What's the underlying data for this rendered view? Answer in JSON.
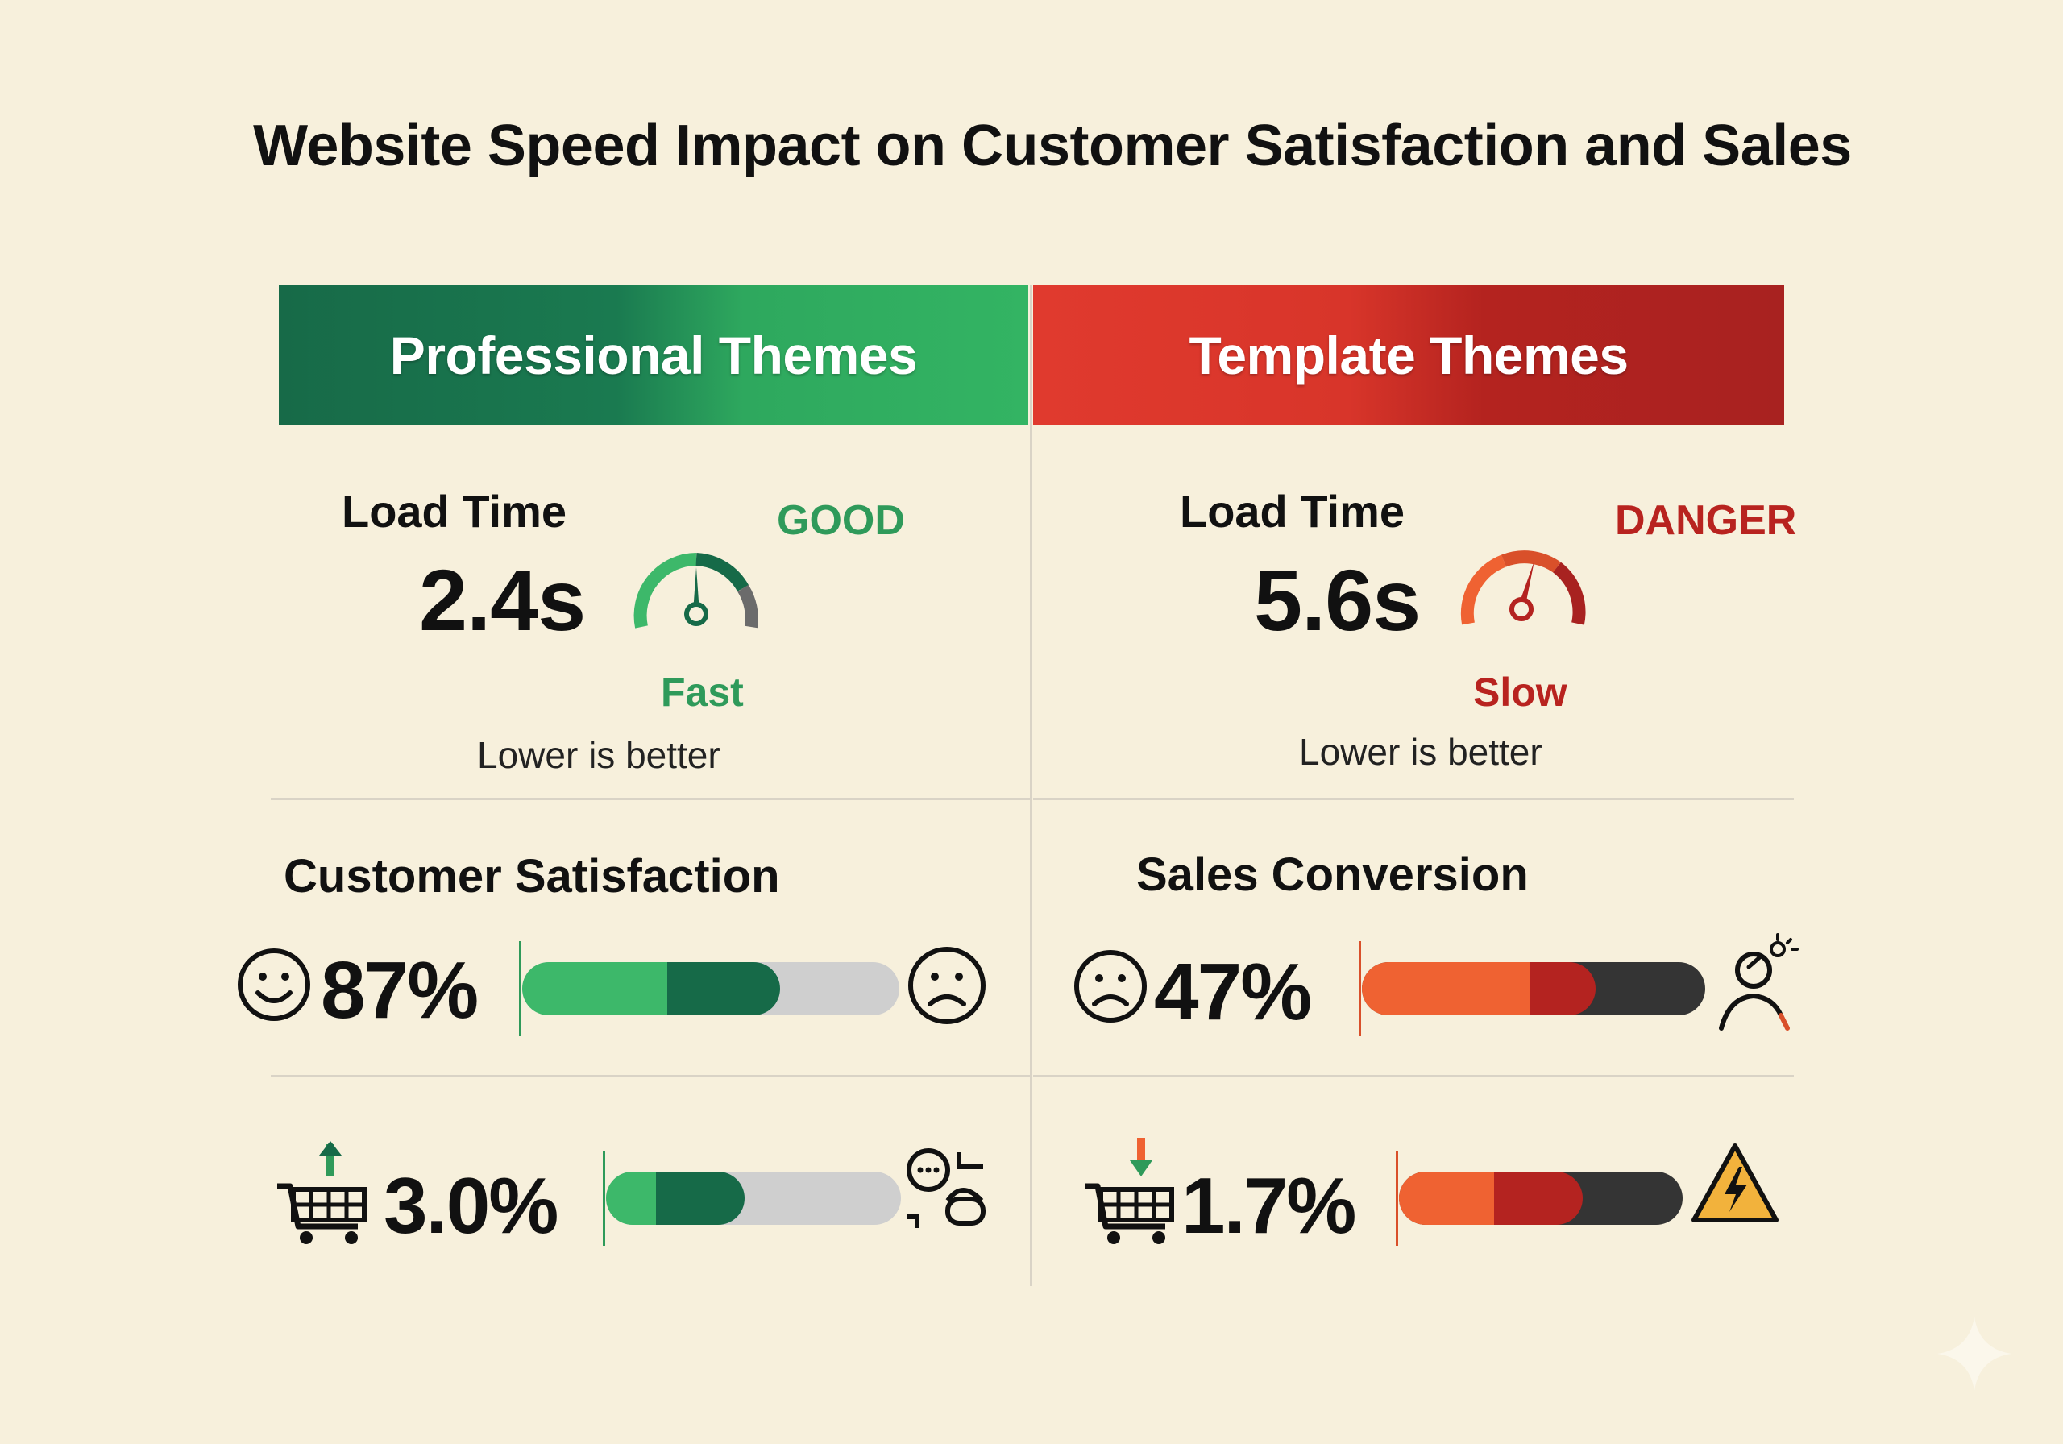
{
  "title": "Website Speed Impact on Customer Satisfaction and Sales",
  "columns": {
    "professional": {
      "header": "Professional Themes",
      "load_time_label": "Load Time",
      "load_time_value": "2.4s",
      "gauge_status": "GOOD",
      "speed_label": "Fast",
      "note": "Lower is better",
      "gauge_color": "#2f9a5a"
    },
    "template": {
      "header": "Template Themes",
      "load_time_label": "Load Time",
      "load_time_value": "5.6s",
      "gauge_status": "DANGER",
      "speed_label": "Slow",
      "note": "Lower is better",
      "gauge_color": "#b8231f"
    }
  },
  "metrics": {
    "customer_satisfaction": {
      "title": "Customer Satisfaction",
      "value": "87%",
      "left_icon": "smile-icon",
      "right_icon": "sad-face-icon"
    },
    "sales_conversion": {
      "title": "Sales Conversion",
      "value": "47%",
      "left_icon": "sad-face-icon",
      "right_icon": "frustrated-person-icon"
    },
    "professional_conversion": {
      "value": "3.0%",
      "left_icon": "cart-up-icon",
      "right_icon": "chat-person-icon"
    },
    "template_conversion": {
      "value": "1.7%",
      "left_icon": "cart-down-icon",
      "right_icon": "warning-icon"
    }
  },
  "colors": {
    "green_light": "#3db86a",
    "green_dark": "#166a48",
    "orange": "#ef6232",
    "red_dark": "#b42320",
    "charcoal": "#343434",
    "track": "#cfcfcf"
  }
}
